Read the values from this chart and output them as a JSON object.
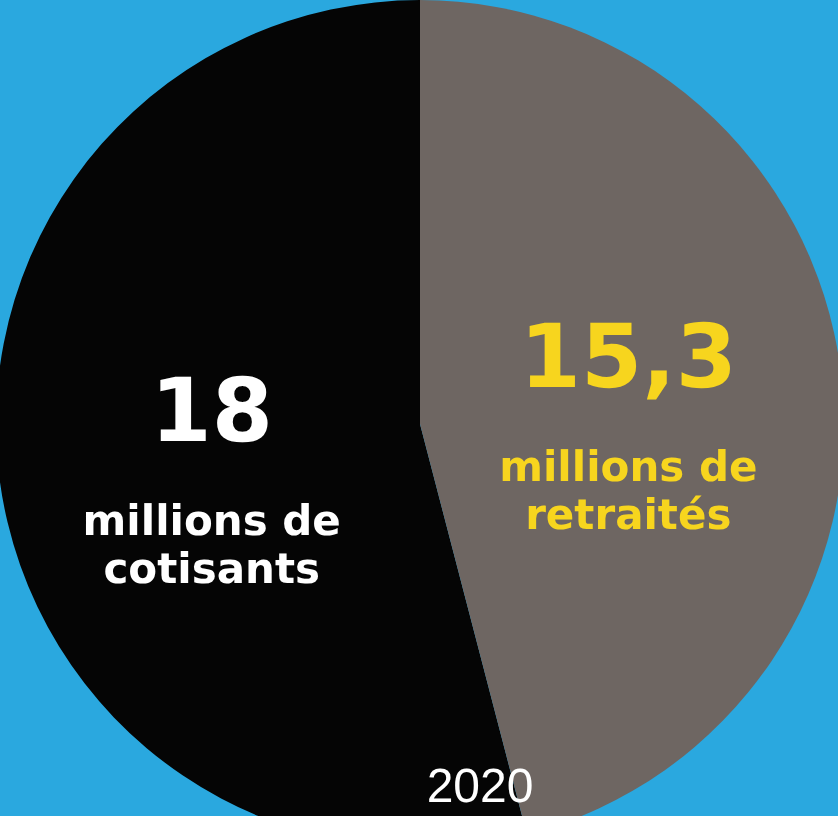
{
  "chart_data": {
    "type": "pie",
    "title": "2020",
    "categories": [
      "millions de cotisants",
      "millions de retraités"
    ],
    "values": [
      18,
      15.3
    ],
    "value_labels": [
      "18",
      "15,3"
    ],
    "colors": [
      "#050505",
      "#6e6662"
    ]
  }
}
